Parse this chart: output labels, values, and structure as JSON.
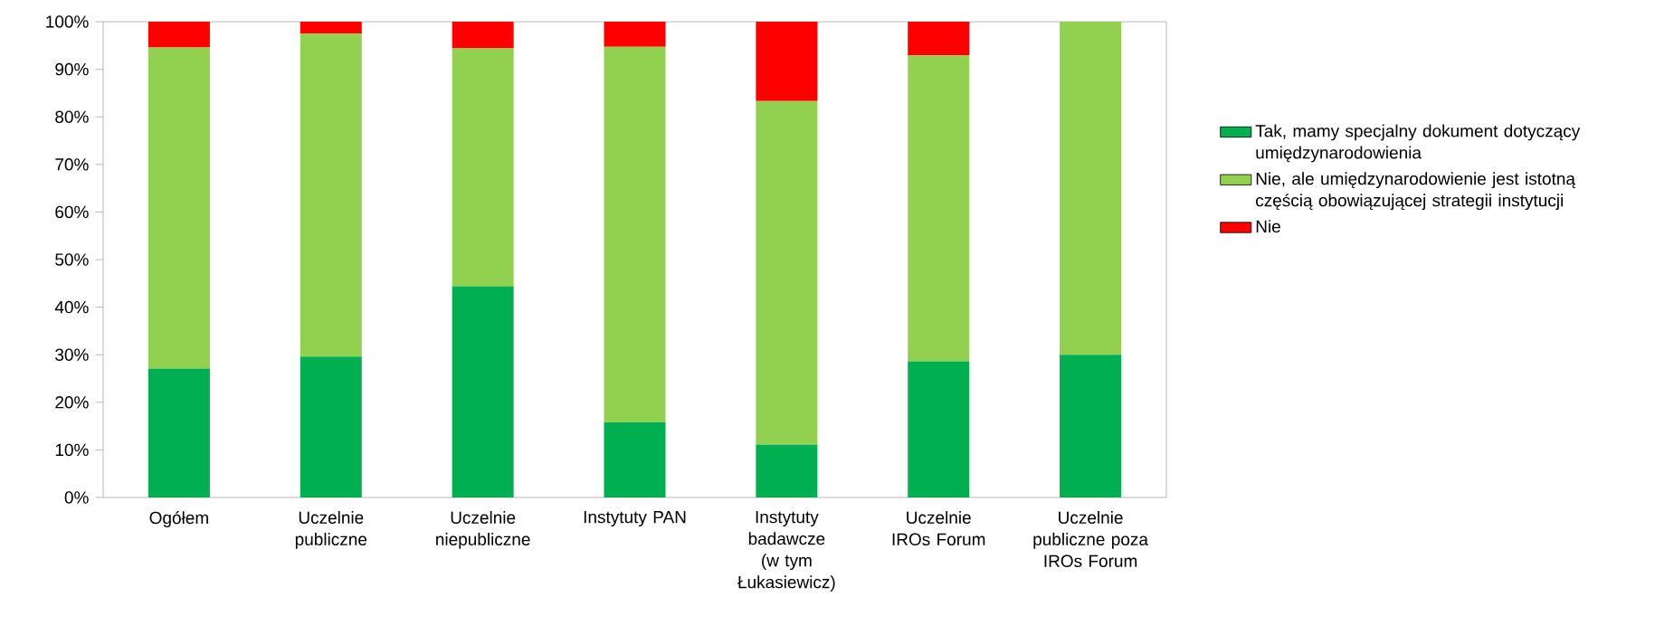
{
  "chart_data": {
    "type": "bar",
    "stacked": true,
    "categories": [
      "Ogółem",
      "Uczelnie publiczne",
      "Uczelnie niepubliczne",
      "Instytuty PAN",
      "Instytuty badawcze (w tym Łukasiewicz)",
      "Uczelnie IROs Forum",
      "Uczelnie publiczne poza IROs Forum"
    ],
    "series": [
      {
        "name": "Tak, mamy specjalny dokument dotyczący umiędzynarodowienia",
        "color": "#00b050",
        "values": [
          27.1,
          29.6,
          44.4,
          15.8,
          11.1,
          28.6,
          30.0
        ]
      },
      {
        "name": "Nie, ale umiędzynarodowienie jest istotną częścią obowiązującej strategii instytucji",
        "color": "#92d050",
        "values": [
          67.5,
          67.9,
          50.0,
          78.9,
          72.2,
          64.3,
          70.0
        ]
      },
      {
        "name": "Nie",
        "color": "#ff0000",
        "values": [
          5.4,
          2.5,
          5.6,
          5.3,
          16.7,
          7.1,
          0
        ]
      }
    ],
    "ylim": [
      0,
      100
    ],
    "yticks": [
      {
        "value": 0,
        "label": "0%"
      },
      {
        "value": 10,
        "label": "10%"
      },
      {
        "value": 20,
        "label": "20%"
      },
      {
        "value": 30,
        "label": "30%"
      },
      {
        "value": 40,
        "label": "40%"
      },
      {
        "value": 50,
        "label": "50%"
      },
      {
        "value": 60,
        "label": "60%"
      },
      {
        "value": 70,
        "label": "70%"
      },
      {
        "value": 80,
        "label": "80%"
      },
      {
        "value": 90,
        "label": "90%"
      },
      {
        "value": 100,
        "label": "100%"
      }
    ],
    "grid": false,
    "legend": "right"
  }
}
